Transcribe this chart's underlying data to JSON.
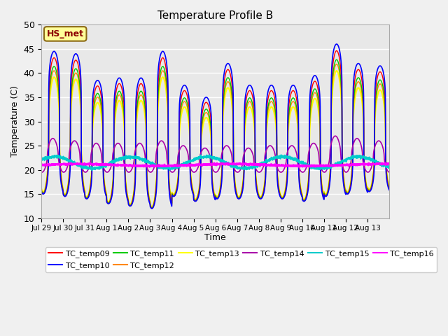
{
  "title": "Temperature Profile B",
  "xlabel": "Time",
  "ylabel": "Temperature (C)",
  "ylim": [
    10,
    50
  ],
  "annotation": "HS_met",
  "x_tick_labels": [
    "Jul 29",
    "Jul 30",
    "Jul 31",
    "Aug 1",
    "Aug 2",
    "Aug 3",
    "Aug 4",
    "Aug 5",
    "Aug 6",
    "Aug 7",
    "Aug 8",
    "Aug 9",
    "Aug 10",
    "Aug 11",
    "Aug 12",
    "Aug 13"
  ],
  "series_colors": {
    "TC_temp09": "#ff0000",
    "TC_temp10": "#0000ff",
    "TC_temp11": "#00cc00",
    "TC_temp12": "#ff8800",
    "TC_temp13": "#ffff00",
    "TC_temp14": "#aa00aa",
    "TC_temp15": "#00cccc",
    "TC_temp16": "#ff00ff"
  },
  "series_lw": {
    "TC_temp09": 1.0,
    "TC_temp10": 1.2,
    "TC_temp11": 1.0,
    "TC_temp12": 1.0,
    "TC_temp13": 1.5,
    "TC_temp14": 1.2,
    "TC_temp15": 1.5,
    "TC_temp16": 1.8
  },
  "bg_above45": "#d8d8d8",
  "bg_main": "#e8e8e8",
  "grid_color": "#ffffff",
  "num_days": 16,
  "pts_per_day": 144,
  "daily_peaks": [
    44.5,
    44.0,
    38.5,
    39.0,
    39.0,
    44.5,
    37.5,
    35.0,
    42.0,
    37.5,
    37.5,
    37.5,
    39.5,
    46.0,
    42.0,
    41.5
  ],
  "daily_mins": [
    15.0,
    14.5,
    14.0,
    13.0,
    12.5,
    12.0,
    14.5,
    13.5,
    14.0,
    14.0,
    14.0,
    14.0,
    13.5,
    14.5,
    15.0,
    15.5
  ],
  "figsize": [
    6.4,
    4.8
  ],
  "dpi": 100
}
